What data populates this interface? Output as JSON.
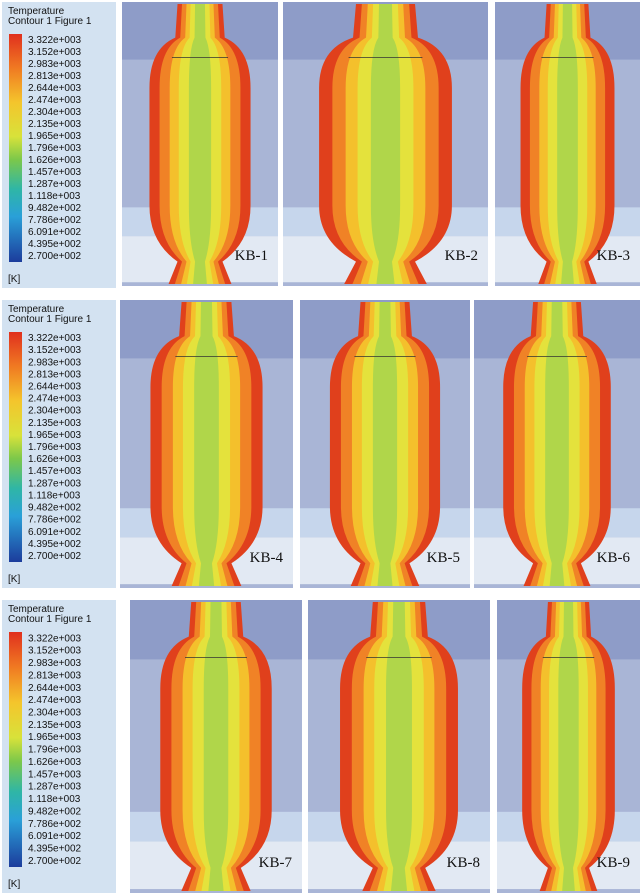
{
  "legends": [
    {
      "title": "Temperature",
      "subtitle": "Contour 1 Figure 1",
      "levels": [
        "3.322e+003",
        "3.152e+003",
        "2.983e+003",
        "2.813e+003",
        "2.644e+003",
        "2.474e+003",
        "2.304e+003",
        "2.135e+003",
        "1.965e+003",
        "1.796e+003",
        "1.626e+003",
        "1.457e+003",
        "1.287e+003",
        "1.118e+003",
        "9.482e+002",
        "7.786e+002",
        "6.091e+002",
        "4.395e+002",
        "2.700e+002"
      ],
      "unit": "[K]"
    },
    {
      "title": "Temperature",
      "subtitle": "Contour 1 Figure 1",
      "levels": [
        "3.322e+003",
        "3.152e+003",
        "2.983e+003",
        "2.813e+003",
        "2.644e+003",
        "2.474e+003",
        "2.304e+003",
        "2.135e+003",
        "1.965e+003",
        "1.796e+003",
        "1.626e+003",
        "1.457e+003",
        "1.287e+003",
        "1.118e+003",
        "9.482e+002",
        "7.786e+002",
        "6.091e+002",
        "4.395e+002",
        "2.700e+002"
      ],
      "unit": "[K]"
    },
    {
      "title": "Temperature",
      "subtitle": "Contour 1 Figure 1",
      "levels": [
        "3.322e+003",
        "3.152e+003",
        "2.983e+003",
        "2.813e+003",
        "2.644e+003",
        "2.474e+003",
        "2.304e+003",
        "2.135e+003",
        "1.965e+003",
        "1.796e+003",
        "1.626e+003",
        "1.457e+003",
        "1.287e+003",
        "1.118e+003",
        "9.482e+002",
        "7.786e+002",
        "6.091e+002",
        "4.395e+002",
        "2.700e+002"
      ],
      "unit": "[K]"
    }
  ],
  "panels": [
    {
      "label": "KB-1"
    },
    {
      "label": "KB-2"
    },
    {
      "label": "KB-3"
    },
    {
      "label": "KB-4"
    },
    {
      "label": "KB-5"
    },
    {
      "label": "KB-6"
    },
    {
      "label": "KB-7"
    },
    {
      "label": "KB-8"
    },
    {
      "label": "KB-9"
    }
  ]
}
